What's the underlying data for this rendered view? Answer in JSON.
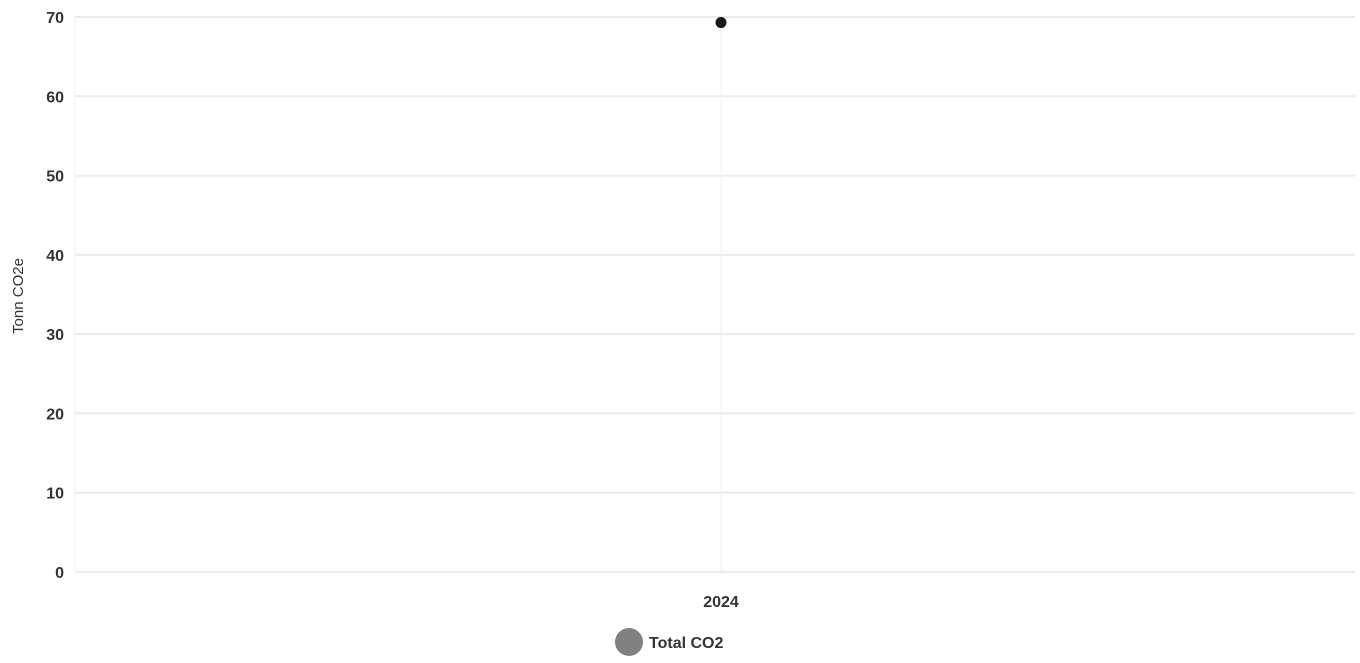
{
  "chart_data": {
    "type": "scatter",
    "title": "",
    "xlabel": "",
    "ylabel": "Tonn CO2e",
    "categories": [
      "2024"
    ],
    "ylim": [
      0,
      70
    ],
    "yticks": [
      0,
      10,
      20,
      30,
      40,
      50,
      60,
      70
    ],
    "grid": true,
    "legend_position": "bottom",
    "series": [
      {
        "name": "Total CO2",
        "values": [
          69.3
        ],
        "point_color": "#1a1a1a",
        "legend_color": "#808080"
      }
    ]
  }
}
